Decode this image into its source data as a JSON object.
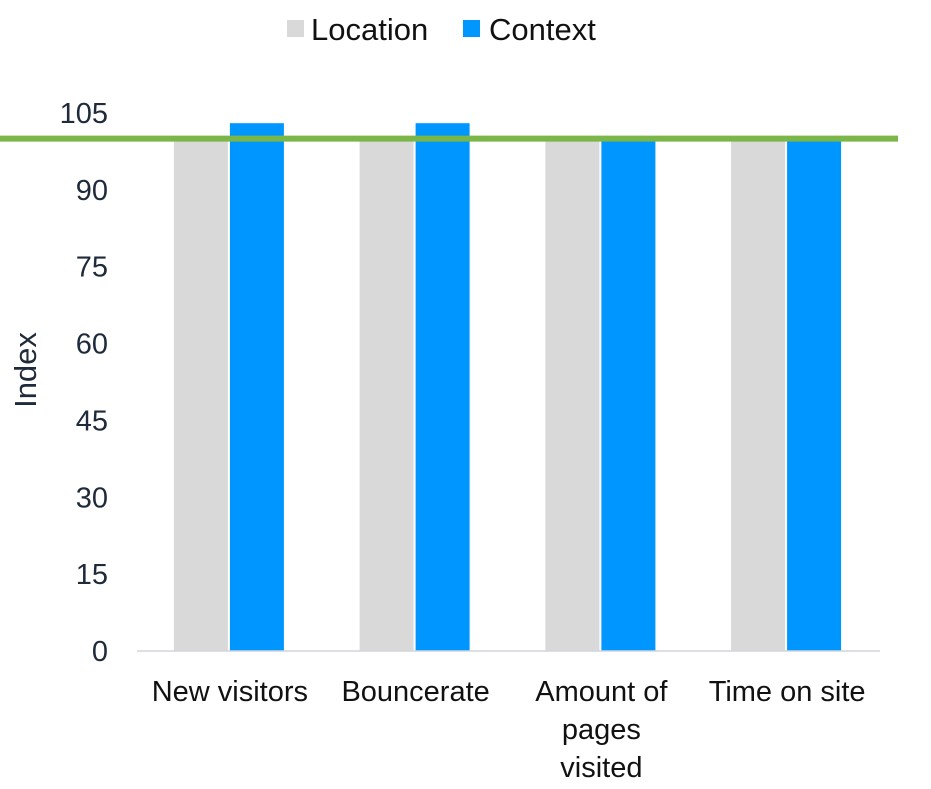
{
  "chart_data": {
    "type": "bar",
    "title": "",
    "xlabel": "",
    "ylabel": "Index",
    "ylim": [
      0,
      105
    ],
    "yticks": [
      "0",
      "15",
      "30",
      "45",
      "60",
      "75",
      "90",
      "105"
    ],
    "categories": [
      [
        "New visitors"
      ],
      [
        "Bouncerate"
      ],
      [
        "Amount of",
        "pages",
        "visited"
      ],
      [
        "Time on site"
      ]
    ],
    "series": [
      {
        "name": "Location",
        "color": "#d9d9d9",
        "values": [
          100,
          100,
          100,
          100
        ]
      },
      {
        "name": "Context",
        "color": "#0096ff",
        "values": [
          103,
          103,
          100,
          100
        ]
      }
    ],
    "reference_line": {
      "value": 100,
      "color": "#7ab648"
    },
    "legend_position": "top",
    "grid": false
  }
}
